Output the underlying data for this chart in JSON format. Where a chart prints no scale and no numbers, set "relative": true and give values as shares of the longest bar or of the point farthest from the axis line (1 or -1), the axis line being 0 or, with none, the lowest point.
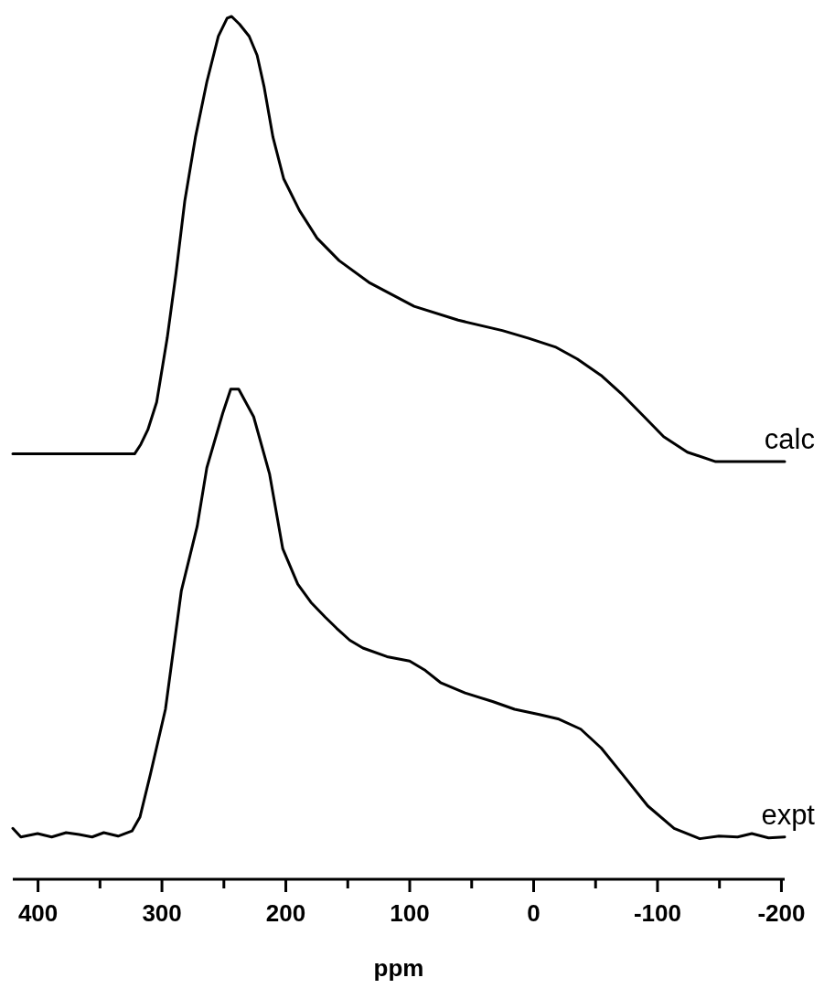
{
  "chart_data": {
    "type": "line",
    "xlabel": "ppm",
    "relative": true,
    "legend": false,
    "marker": "none",
    "line_style": "solid",
    "grid": false,
    "tick_labels": "x",
    "xlim": [
      420,
      -203
    ],
    "xticks": [
      400,
      {
        "value": 350,
        "label": null
      },
      300,
      {
        "value": 250,
        "label": null
      },
      200,
      {
        "value": 150,
        "label": null
      },
      100,
      {
        "value": 50,
        "label": null
      },
      0,
      {
        "value": -50,
        "label": null
      },
      -100,
      {
        "value": -150,
        "label": null
      },
      -200
    ],
    "series": [
      {
        "name": "calc",
        "color": "#000000",
        "x": [
          420,
          359.4,
          321.7,
          316.7,
          311.0,
          303.9,
          295.4,
          288.3,
          281.2,
          272.6,
          263.4,
          254.1,
          247.0,
          243.4,
          237.0,
          229.2,
          222.8,
          217.1,
          210.0,
          201.4,
          188.6,
          174.4,
          156.6,
          131.7,
          96.1,
          60.5,
          24.9,
          3.6,
          -17.8,
          -35.6,
          -54.8,
          -71.1,
          -88.9,
          -105.3,
          -124.5,
          -147.3,
          -203
        ],
        "values": [
          0.493,
          0.493,
          0.493,
          0.504,
          0.521,
          0.553,
          0.627,
          0.702,
          0.786,
          0.86,
          0.924,
          0.977,
          0.998,
          1.0,
          0.991,
          0.977,
          0.955,
          0.918,
          0.86,
          0.812,
          0.775,
          0.743,
          0.717,
          0.691,
          0.664,
          0.648,
          0.636,
          0.627,
          0.617,
          0.603,
          0.584,
          0.563,
          0.537,
          0.513,
          0.495,
          0.484,
          0.484
        ]
      },
      {
        "name": "expt",
        "color": "#000000",
        "x": [
          420,
          413.5,
          400,
          388.6,
          377,
          366.5,
          356,
          346.6,
          335,
          323.8,
          317.4,
          308.9,
          296.8,
          284.0,
          271.2,
          263.4,
          250.6,
          244.1,
          237.7,
          225.6,
          212.8,
          202.1,
          190,
          179.4,
          168,
          158.7,
          148,
          137.4,
          118,
          99.7,
          87,
          74.8,
          55,
          32.8,
          15,
          -5.0,
          -20,
          -38.4,
          -55,
          -71.9,
          -92.5,
          -113.8,
          -134.5,
          -150,
          -165,
          -176.5,
          -190,
          -203
        ],
        "values": [
          0.059,
          0.049,
          0.053,
          0.049,
          0.054,
          0.052,
          0.049,
          0.054,
          0.05,
          0.056,
          0.072,
          0.122,
          0.197,
          0.334,
          0.409,
          0.477,
          0.54,
          0.568,
          0.568,
          0.536,
          0.47,
          0.383,
          0.342,
          0.321,
          0.304,
          0.291,
          0.277,
          0.268,
          0.258,
          0.253,
          0.242,
          0.228,
          0.216,
          0.206,
          0.197,
          0.191,
          0.186,
          0.174,
          0.152,
          0.122,
          0.085,
          0.059,
          0.047,
          0.05,
          0.049,
          0.053,
          0.048,
          0.049
        ]
      }
    ]
  }
}
